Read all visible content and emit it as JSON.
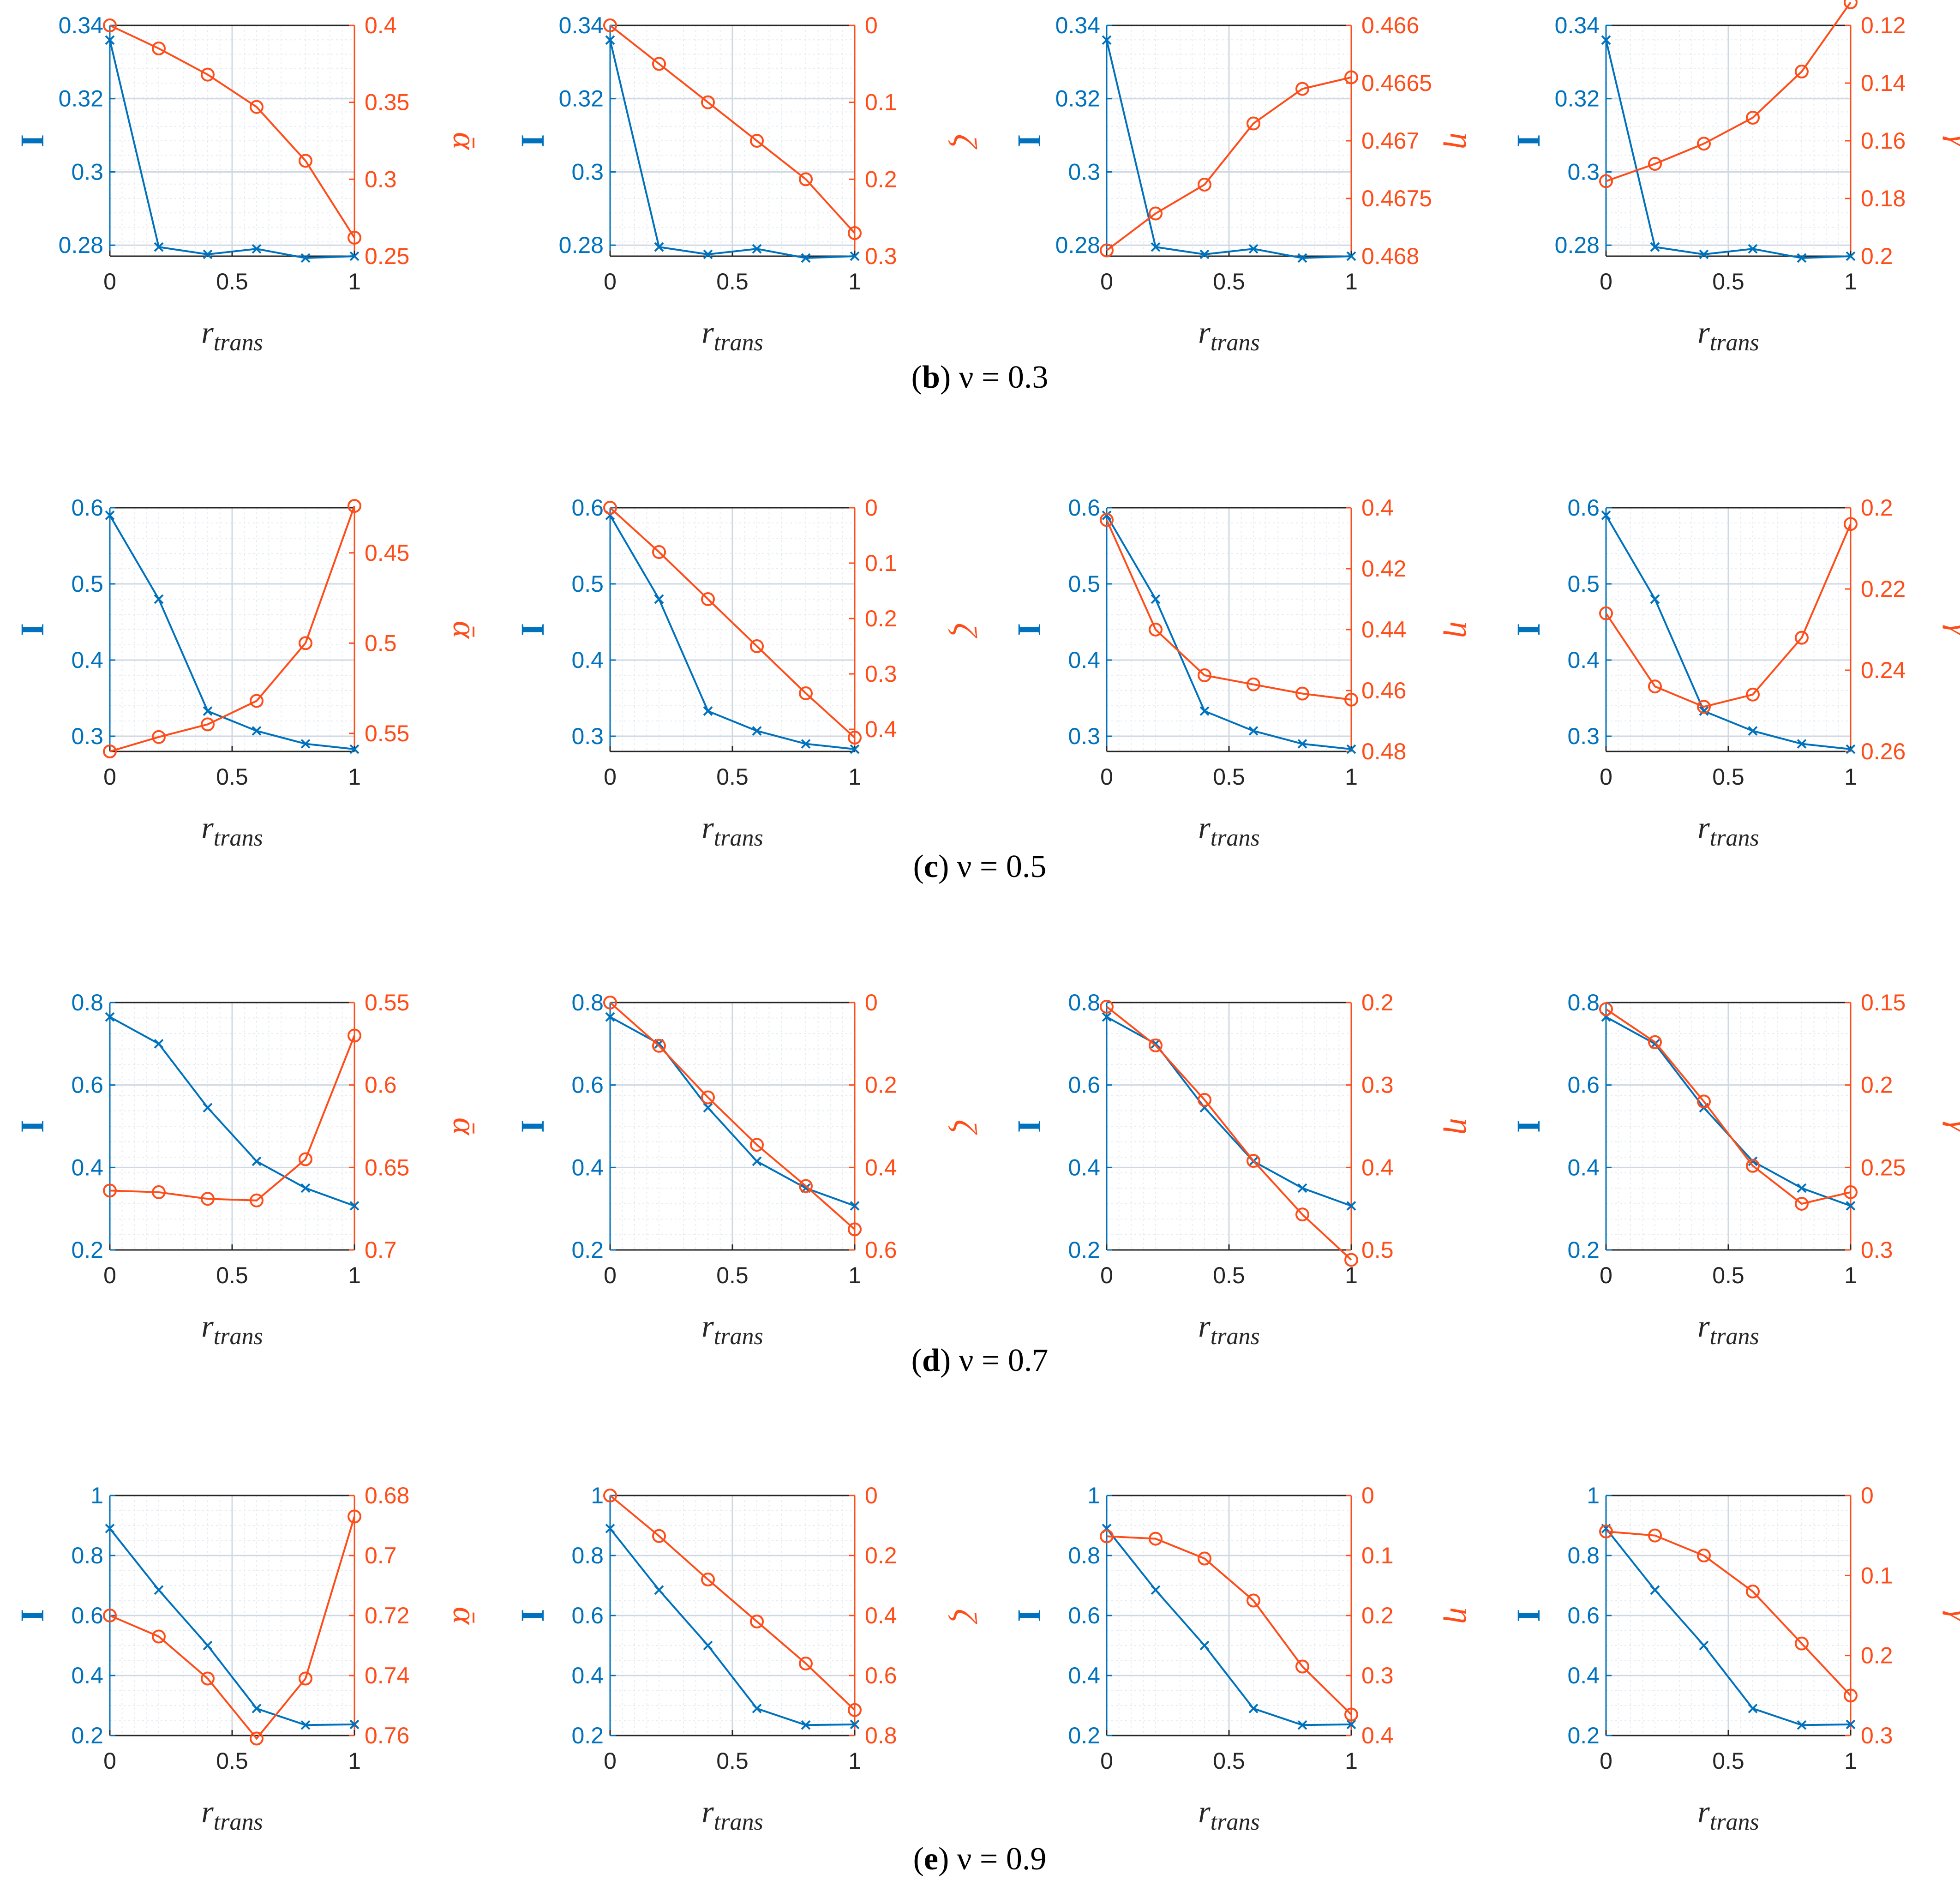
{
  "colors": {
    "left": "#0072BD",
    "right": "#FF4D1A",
    "grid": "#cfd8e3",
    "minor_grid": "#e6ecf2",
    "axis": "#262626"
  },
  "x_label_main": "r",
  "x_label_sub": "trans",
  "x_ticks": [
    "0",
    "0.5",
    "1"
  ],
  "left_label": "I",
  "left_marker": "x-marker",
  "right_marker": "circle-marker",
  "rows": [
    {
      "caption": {
        "letter": "b",
        "text": "ν = 0.3"
      },
      "left": {
        "lim": [
          0.277,
          0.34
        ],
        "ticks": [
          [
            "0.34",
            0.34
          ],
          [
            "0.32",
            0.32
          ],
          [
            "0.3",
            0.3
          ],
          [
            "0.28",
            0.28
          ]
        ]
      }
    },
    {
      "caption": {
        "letter": "c",
        "text": "ν = 0.5"
      },
      "left": {
        "lim": [
          0.28,
          0.6
        ],
        "ticks": [
          [
            "0.6",
            0.6
          ],
          [
            "0.5",
            0.5
          ],
          [
            "0.4",
            0.4
          ],
          [
            "0.3",
            0.3
          ]
        ]
      }
    },
    {
      "caption": {
        "letter": "d",
        "text": "ν = 0.7"
      },
      "left": {
        "lim": [
          0.2,
          0.8
        ],
        "ticks": [
          [
            "0.8",
            0.8
          ],
          [
            "0.6",
            0.6
          ],
          [
            "0.4",
            0.4
          ],
          [
            "0.2",
            0.2
          ]
        ]
      }
    },
    {
      "caption": {
        "letter": "e",
        "text": "ν = 0.9"
      },
      "left": {
        "lim": [
          0.2,
          1.0
        ],
        "ticks": [
          [
            "1",
            1.0
          ],
          [
            "0.8",
            0.8
          ],
          [
            "0.6",
            0.6
          ],
          [
            "0.4",
            0.4
          ],
          [
            "0.2",
            0.2
          ]
        ]
      }
    }
  ],
  "chart_data": [
    {
      "type": "line",
      "row": "b",
      "title": "",
      "xlabel": "r_trans",
      "ylabel": "I",
      "ylabel2": "ᾱ",
      "x": [
        0,
        0.2,
        0.4,
        0.6,
        0.8,
        1
      ],
      "xlim": [
        0,
        1
      ],
      "series": [
        {
          "name": "I",
          "values": [
            0.336,
            0.2795,
            0.2775,
            0.279,
            0.2765,
            0.277
          ]
        },
        {
          "name": "ᾱ",
          "values": [
            0.4,
            0.385,
            0.368,
            0.347,
            0.312,
            0.262
          ]
        }
      ],
      "ylim": [
        0.277,
        0.34
      ],
      "y2lim": [
        0.4,
        0.25
      ],
      "y2_ticks": [
        [
          "0.25",
          0.25
        ],
        [
          "0.3",
          0.3
        ],
        [
          "0.35",
          0.35
        ],
        [
          "0.4",
          0.4
        ]
      ]
    },
    {
      "type": "line",
      "row": "b",
      "xlabel": "r_trans",
      "ylabel": "I",
      "ylabel2": "ζ",
      "x": [
        0,
        0.2,
        0.4,
        0.6,
        0.8,
        1
      ],
      "xlim": [
        0,
        1
      ],
      "series": [
        {
          "name": "I",
          "values": [
            0.336,
            0.2795,
            0.2775,
            0.279,
            0.2765,
            0.277
          ]
        },
        {
          "name": "ζ",
          "values": [
            0.0,
            0.05,
            0.1,
            0.15,
            0.2,
            0.27
          ]
        }
      ],
      "ylim": [
        0.277,
        0.34
      ],
      "y2lim": [
        0.0,
        0.3
      ],
      "y2_ticks": [
        [
          "0",
          0.0
        ],
        [
          "0.1",
          0.1
        ],
        [
          "0.2",
          0.2
        ],
        [
          "0.3",
          0.3
        ]
      ]
    },
    {
      "type": "line",
      "row": "b",
      "xlabel": "r_trans",
      "ylabel": "I",
      "ylabel2": "η",
      "x": [
        0,
        0.2,
        0.4,
        0.6,
        0.8,
        1
      ],
      "xlim": [
        0,
        1
      ],
      "series": [
        {
          "name": "I",
          "values": [
            0.336,
            0.2795,
            0.2775,
            0.279,
            0.2765,
            0.277
          ]
        },
        {
          "name": "η",
          "values": [
            0.46795,
            0.46763,
            0.46738,
            0.46685,
            0.46655,
            0.46645
          ]
        }
      ],
      "ylim": [
        0.277,
        0.34
      ],
      "y2lim": [
        0.466,
        0.468
      ],
      "y2_ticks": [
        [
          "0.466",
          0.466
        ],
        [
          "0.4665",
          0.4665
        ],
        [
          "0.467",
          0.467
        ],
        [
          "0.4675",
          0.4675
        ],
        [
          "0.468",
          0.468
        ]
      ]
    },
    {
      "type": "line",
      "row": "b",
      "xlabel": "r_trans",
      "ylabel": "I",
      "ylabel2": "γ",
      "x": [
        0,
        0.2,
        0.4,
        0.6,
        0.8,
        1
      ],
      "xlim": [
        0,
        1
      ],
      "series": [
        {
          "name": "I",
          "values": [
            0.336,
            0.2795,
            0.2775,
            0.279,
            0.2765,
            0.277
          ]
        },
        {
          "name": "γ",
          "values": [
            0.174,
            0.168,
            0.161,
            0.152,
            0.136,
            0.112
          ]
        }
      ],
      "ylim": [
        0.277,
        0.34
      ],
      "y2lim": [
        0.12,
        0.2
      ],
      "y2_ticks": [
        [
          "0.12",
          0.12
        ],
        [
          "0.14",
          0.14
        ],
        [
          "0.16",
          0.16
        ],
        [
          "0.18",
          0.18
        ],
        [
          "0.2",
          0.2
        ]
      ]
    },
    {
      "type": "line",
      "row": "c",
      "xlabel": "r_trans",
      "ylabel": "I",
      "ylabel2": "ᾱ",
      "x": [
        0,
        0.2,
        0.4,
        0.6,
        0.8,
        1
      ],
      "xlim": [
        0,
        1
      ],
      "series": [
        {
          "name": "I",
          "values": [
            0.59,
            0.48,
            0.333,
            0.307,
            0.29,
            0.283
          ]
        },
        {
          "name": "ᾱ",
          "values": [
            0.56,
            0.552,
            0.545,
            0.532,
            0.5,
            0.424
          ]
        }
      ],
      "ylim": [
        0.28,
        0.6
      ],
      "y2lim": [
        0.425,
        0.56
      ],
      "y2_ticks": [
        [
          "0.45",
          0.45
        ],
        [
          "0.5",
          0.5
        ],
        [
          "0.55",
          0.55
        ]
      ]
    },
    {
      "type": "line",
      "row": "c",
      "xlabel": "r_trans",
      "ylabel": "I",
      "ylabel2": "ζ",
      "x": [
        0,
        0.2,
        0.4,
        0.6,
        0.8,
        1
      ],
      "xlim": [
        0,
        1
      ],
      "series": [
        {
          "name": "I",
          "values": [
            0.59,
            0.48,
            0.333,
            0.307,
            0.29,
            0.283
          ]
        },
        {
          "name": "ζ",
          "values": [
            0.0,
            0.08,
            0.165,
            0.25,
            0.335,
            0.415
          ]
        }
      ],
      "ylim": [
        0.28,
        0.6
      ],
      "y2lim": [
        0.0,
        0.44
      ],
      "y2_ticks": [
        [
          "0",
          0.0
        ],
        [
          "0.1",
          0.1
        ],
        [
          "0.2",
          0.2
        ],
        [
          "0.3",
          0.3
        ],
        [
          "0.4",
          0.4
        ]
      ]
    },
    {
      "type": "line",
      "row": "c",
      "xlabel": "r_trans",
      "ylabel": "I",
      "ylabel2": "η",
      "x": [
        0,
        0.2,
        0.4,
        0.6,
        0.8,
        1
      ],
      "xlim": [
        0,
        1
      ],
      "series": [
        {
          "name": "I",
          "values": [
            0.59,
            0.48,
            0.333,
            0.307,
            0.29,
            0.283
          ]
        },
        {
          "name": "η",
          "values": [
            0.404,
            0.44,
            0.455,
            0.458,
            0.461,
            0.463
          ]
        }
      ],
      "ylim": [
        0.28,
        0.6
      ],
      "y2lim": [
        0.4,
        0.48
      ],
      "y2_ticks": [
        [
          "0.4",
          0.4
        ],
        [
          "0.42",
          0.42
        ],
        [
          "0.44",
          0.44
        ],
        [
          "0.46",
          0.46
        ],
        [
          "0.48",
          0.48
        ]
      ]
    },
    {
      "type": "line",
      "row": "c",
      "xlabel": "r_trans",
      "ylabel": "I",
      "ylabel2": "γ",
      "x": [
        0,
        0.2,
        0.4,
        0.6,
        0.8,
        1
      ],
      "xlim": [
        0,
        1
      ],
      "series": [
        {
          "name": "I",
          "values": [
            0.59,
            0.48,
            0.333,
            0.307,
            0.29,
            0.283
          ]
        },
        {
          "name": "γ",
          "values": [
            0.226,
            0.244,
            0.249,
            0.246,
            0.232,
            0.204
          ]
        }
      ],
      "ylim": [
        0.28,
        0.6
      ],
      "y2lim": [
        0.2,
        0.26
      ],
      "y2_ticks": [
        [
          "0.2",
          0.2
        ],
        [
          "0.22",
          0.22
        ],
        [
          "0.24",
          0.24
        ],
        [
          "0.26",
          0.26
        ]
      ]
    },
    {
      "type": "line",
      "row": "d",
      "xlabel": "r_trans",
      "ylabel": "I",
      "ylabel2": "ᾱ",
      "x": [
        0,
        0.2,
        0.4,
        0.6,
        0.8,
        1
      ],
      "xlim": [
        0,
        1
      ],
      "series": [
        {
          "name": "I",
          "values": [
            0.765,
            0.7,
            0.545,
            0.415,
            0.35,
            0.307
          ]
        },
        {
          "name": "ᾱ",
          "values": [
            0.664,
            0.665,
            0.669,
            0.67,
            0.645,
            0.57
          ]
        }
      ],
      "ylim": [
        0.2,
        0.8
      ],
      "y2lim": [
        0.55,
        0.7
      ],
      "y2_ticks": [
        [
          "0.55",
          0.55
        ],
        [
          "0.6",
          0.6
        ],
        [
          "0.65",
          0.65
        ],
        [
          "0.7",
          0.7
        ]
      ]
    },
    {
      "type": "line",
      "row": "d",
      "xlabel": "r_trans",
      "ylabel": "I",
      "ylabel2": "ζ",
      "x": [
        0,
        0.2,
        0.4,
        0.6,
        0.8,
        1
      ],
      "xlim": [
        0,
        1
      ],
      "series": [
        {
          "name": "I",
          "values": [
            0.765,
            0.7,
            0.545,
            0.415,
            0.35,
            0.307
          ]
        },
        {
          "name": "ζ",
          "values": [
            0.0,
            0.105,
            0.23,
            0.345,
            0.445,
            0.55
          ]
        }
      ],
      "ylim": [
        0.2,
        0.8
      ],
      "y2lim": [
        0.0,
        0.6
      ],
      "y2_ticks": [
        [
          "0",
          0.0
        ],
        [
          "0.2",
          0.2
        ],
        [
          "0.4",
          0.4
        ],
        [
          "0.6",
          0.6
        ]
      ]
    },
    {
      "type": "line",
      "row": "d",
      "xlabel": "r_trans",
      "ylabel": "I",
      "ylabel2": "η",
      "x": [
        0,
        0.2,
        0.4,
        0.6,
        0.8,
        1
      ],
      "xlim": [
        0,
        1
      ],
      "series": [
        {
          "name": "I",
          "values": [
            0.765,
            0.7,
            0.545,
            0.415,
            0.35,
            0.307
          ]
        },
        {
          "name": "η",
          "values": [
            0.205,
            0.252,
            0.318,
            0.392,
            0.457,
            0.512
          ]
        }
      ],
      "ylim": [
        0.2,
        0.8
      ],
      "y2lim": [
        0.2,
        0.5
      ],
      "y2_ticks": [
        [
          "0.2",
          0.2
        ],
        [
          "0.3",
          0.3
        ],
        [
          "0.4",
          0.4
        ],
        [
          "0.5",
          0.5
        ]
      ]
    },
    {
      "type": "line",
      "row": "d",
      "xlabel": "r_trans",
      "ylabel": "I",
      "ylabel2": "γ",
      "x": [
        0,
        0.2,
        0.4,
        0.6,
        0.8,
        1
      ],
      "xlim": [
        0,
        1
      ],
      "series": [
        {
          "name": "I",
          "values": [
            0.765,
            0.7,
            0.545,
            0.415,
            0.35,
            0.307
          ]
        },
        {
          "name": "γ",
          "values": [
            0.154,
            0.174,
            0.21,
            0.249,
            0.272,
            0.265
          ]
        }
      ],
      "ylim": [
        0.2,
        0.8
      ],
      "y2lim": [
        0.15,
        0.3
      ],
      "y2_ticks": [
        [
          "0.15",
          0.15
        ],
        [
          "0.2",
          0.2
        ],
        [
          "0.25",
          0.25
        ],
        [
          "0.3",
          0.3
        ]
      ]
    },
    {
      "type": "line",
      "row": "e",
      "xlabel": "r_trans",
      "ylabel": "I",
      "ylabel2": "ᾱ",
      "x": [
        0,
        0.2,
        0.4,
        0.6,
        0.8,
        1
      ],
      "xlim": [
        0,
        1
      ],
      "series": [
        {
          "name": "I",
          "values": [
            0.89,
            0.685,
            0.5,
            0.29,
            0.235,
            0.237
          ]
        },
        {
          "name": "ᾱ",
          "values": [
            0.72,
            0.727,
            0.741,
            0.761,
            0.741,
            0.687
          ]
        }
      ],
      "ylim": [
        0.2,
        1.0
      ],
      "y2lim": [
        0.68,
        0.76
      ],
      "y2_ticks": [
        [
          "0.68",
          0.68
        ],
        [
          "0.7",
          0.7
        ],
        [
          "0.72",
          0.72
        ],
        [
          "0.74",
          0.74
        ],
        [
          "0.76",
          0.76
        ]
      ]
    },
    {
      "type": "line",
      "row": "e",
      "xlabel": "r_trans",
      "ylabel": "I",
      "ylabel2": "ζ",
      "x": [
        0,
        0.2,
        0.4,
        0.6,
        0.8,
        1
      ],
      "xlim": [
        0,
        1
      ],
      "series": [
        {
          "name": "I",
          "values": [
            0.89,
            0.685,
            0.5,
            0.29,
            0.235,
            0.237
          ]
        },
        {
          "name": "ζ",
          "values": [
            0.0,
            0.135,
            0.28,
            0.42,
            0.56,
            0.715
          ]
        }
      ],
      "ylim": [
        0.2,
        1.0
      ],
      "y2lim": [
        0.0,
        0.8
      ],
      "y2_ticks": [
        [
          "0",
          0.0
        ],
        [
          "0.2",
          0.2
        ],
        [
          "0.4",
          0.4
        ],
        [
          "0.6",
          0.6
        ],
        [
          "0.8",
          0.8
        ]
      ]
    },
    {
      "type": "line",
      "row": "e",
      "xlabel": "r_trans",
      "ylabel": "I",
      "ylabel2": "η",
      "x": [
        0,
        0.2,
        0.4,
        0.6,
        0.8,
        1
      ],
      "xlim": [
        0,
        1
      ],
      "series": [
        {
          "name": "I",
          "values": [
            0.89,
            0.685,
            0.5,
            0.29,
            0.235,
            0.237
          ]
        },
        {
          "name": "η",
          "values": [
            0.068,
            0.072,
            0.105,
            0.175,
            0.285,
            0.365
          ]
        }
      ],
      "ylim": [
        0.2,
        1.0
      ],
      "y2lim": [
        0.0,
        0.4
      ],
      "y2_ticks": [
        [
          "0",
          0.0
        ],
        [
          "0.1",
          0.1
        ],
        [
          "0.2",
          0.2
        ],
        [
          "0.3",
          0.3
        ],
        [
          "0.4",
          0.4
        ]
      ]
    },
    {
      "type": "line",
      "row": "e",
      "xlabel": "r_trans",
      "ylabel": "I",
      "ylabel2": "γ",
      "x": [
        0,
        0.2,
        0.4,
        0.6,
        0.8,
        1
      ],
      "xlim": [
        0,
        1
      ],
      "series": [
        {
          "name": "I",
          "values": [
            0.89,
            0.685,
            0.5,
            0.29,
            0.235,
            0.237
          ]
        },
        {
          "name": "γ",
          "values": [
            0.045,
            0.05,
            0.075,
            0.12,
            0.185,
            0.25
          ]
        }
      ],
      "ylim": [
        0.2,
        1.0
      ],
      "y2lim": [
        0.0,
        0.3
      ],
      "y2_ticks": [
        [
          "0",
          0.0
        ],
        [
          "0.1",
          0.1
        ],
        [
          "0.2",
          0.2
        ],
        [
          "0.3",
          0.3
        ]
      ]
    }
  ]
}
